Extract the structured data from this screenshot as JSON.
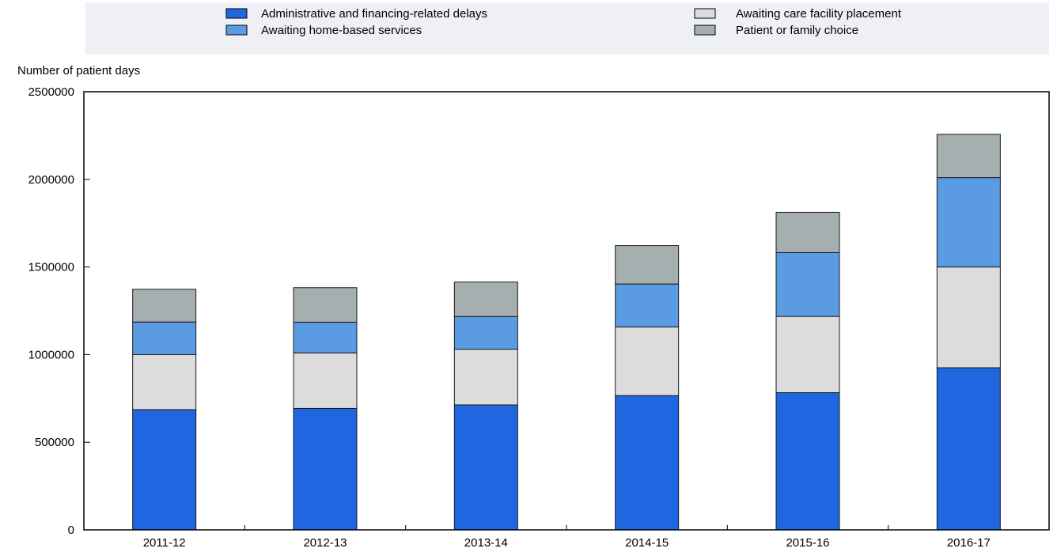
{
  "chart_data": {
    "type": "bar",
    "stacked": true,
    "ylabel": "Number of patient days",
    "ylim": [
      0,
      2500000
    ],
    "yticks": [
      "0",
      "500000",
      "1000000",
      "1500000",
      "2000000",
      "2500000"
    ],
    "categories": [
      "2011-12",
      "2012-13",
      "2013-14",
      "2014-15",
      "2015-16",
      "2016-17"
    ],
    "series": [
      {
        "name": "Administrative and financing-related delays",
        "color": "#1f66e0",
        "values": [
          686000,
          693000,
          713000,
          766000,
          783000,
          925000
        ]
      },
      {
        "name": "Awaiting care facility placement",
        "color": "#dcdcdc",
        "values": [
          314000,
          317000,
          318000,
          392000,
          435000,
          575000
        ]
      },
      {
        "name": "Awaiting home-based services",
        "color": "#5b9be4",
        "values": [
          186000,
          175000,
          186000,
          245000,
          364000,
          510000
        ]
      },
      {
        "name": "Patient or family choice",
        "color": "#a5afaf",
        "values": [
          187000,
          197000,
          197000,
          219000,
          230000,
          247000
        ]
      }
    ],
    "legend": {
      "position": "top",
      "left_column": [
        "Administrative and financing-related delays",
        "Awaiting home-based services"
      ],
      "right_column": [
        "Awaiting care facility placement",
        "Patient or family choice"
      ]
    },
    "grid": false,
    "background_color": "#eff0f5"
  }
}
